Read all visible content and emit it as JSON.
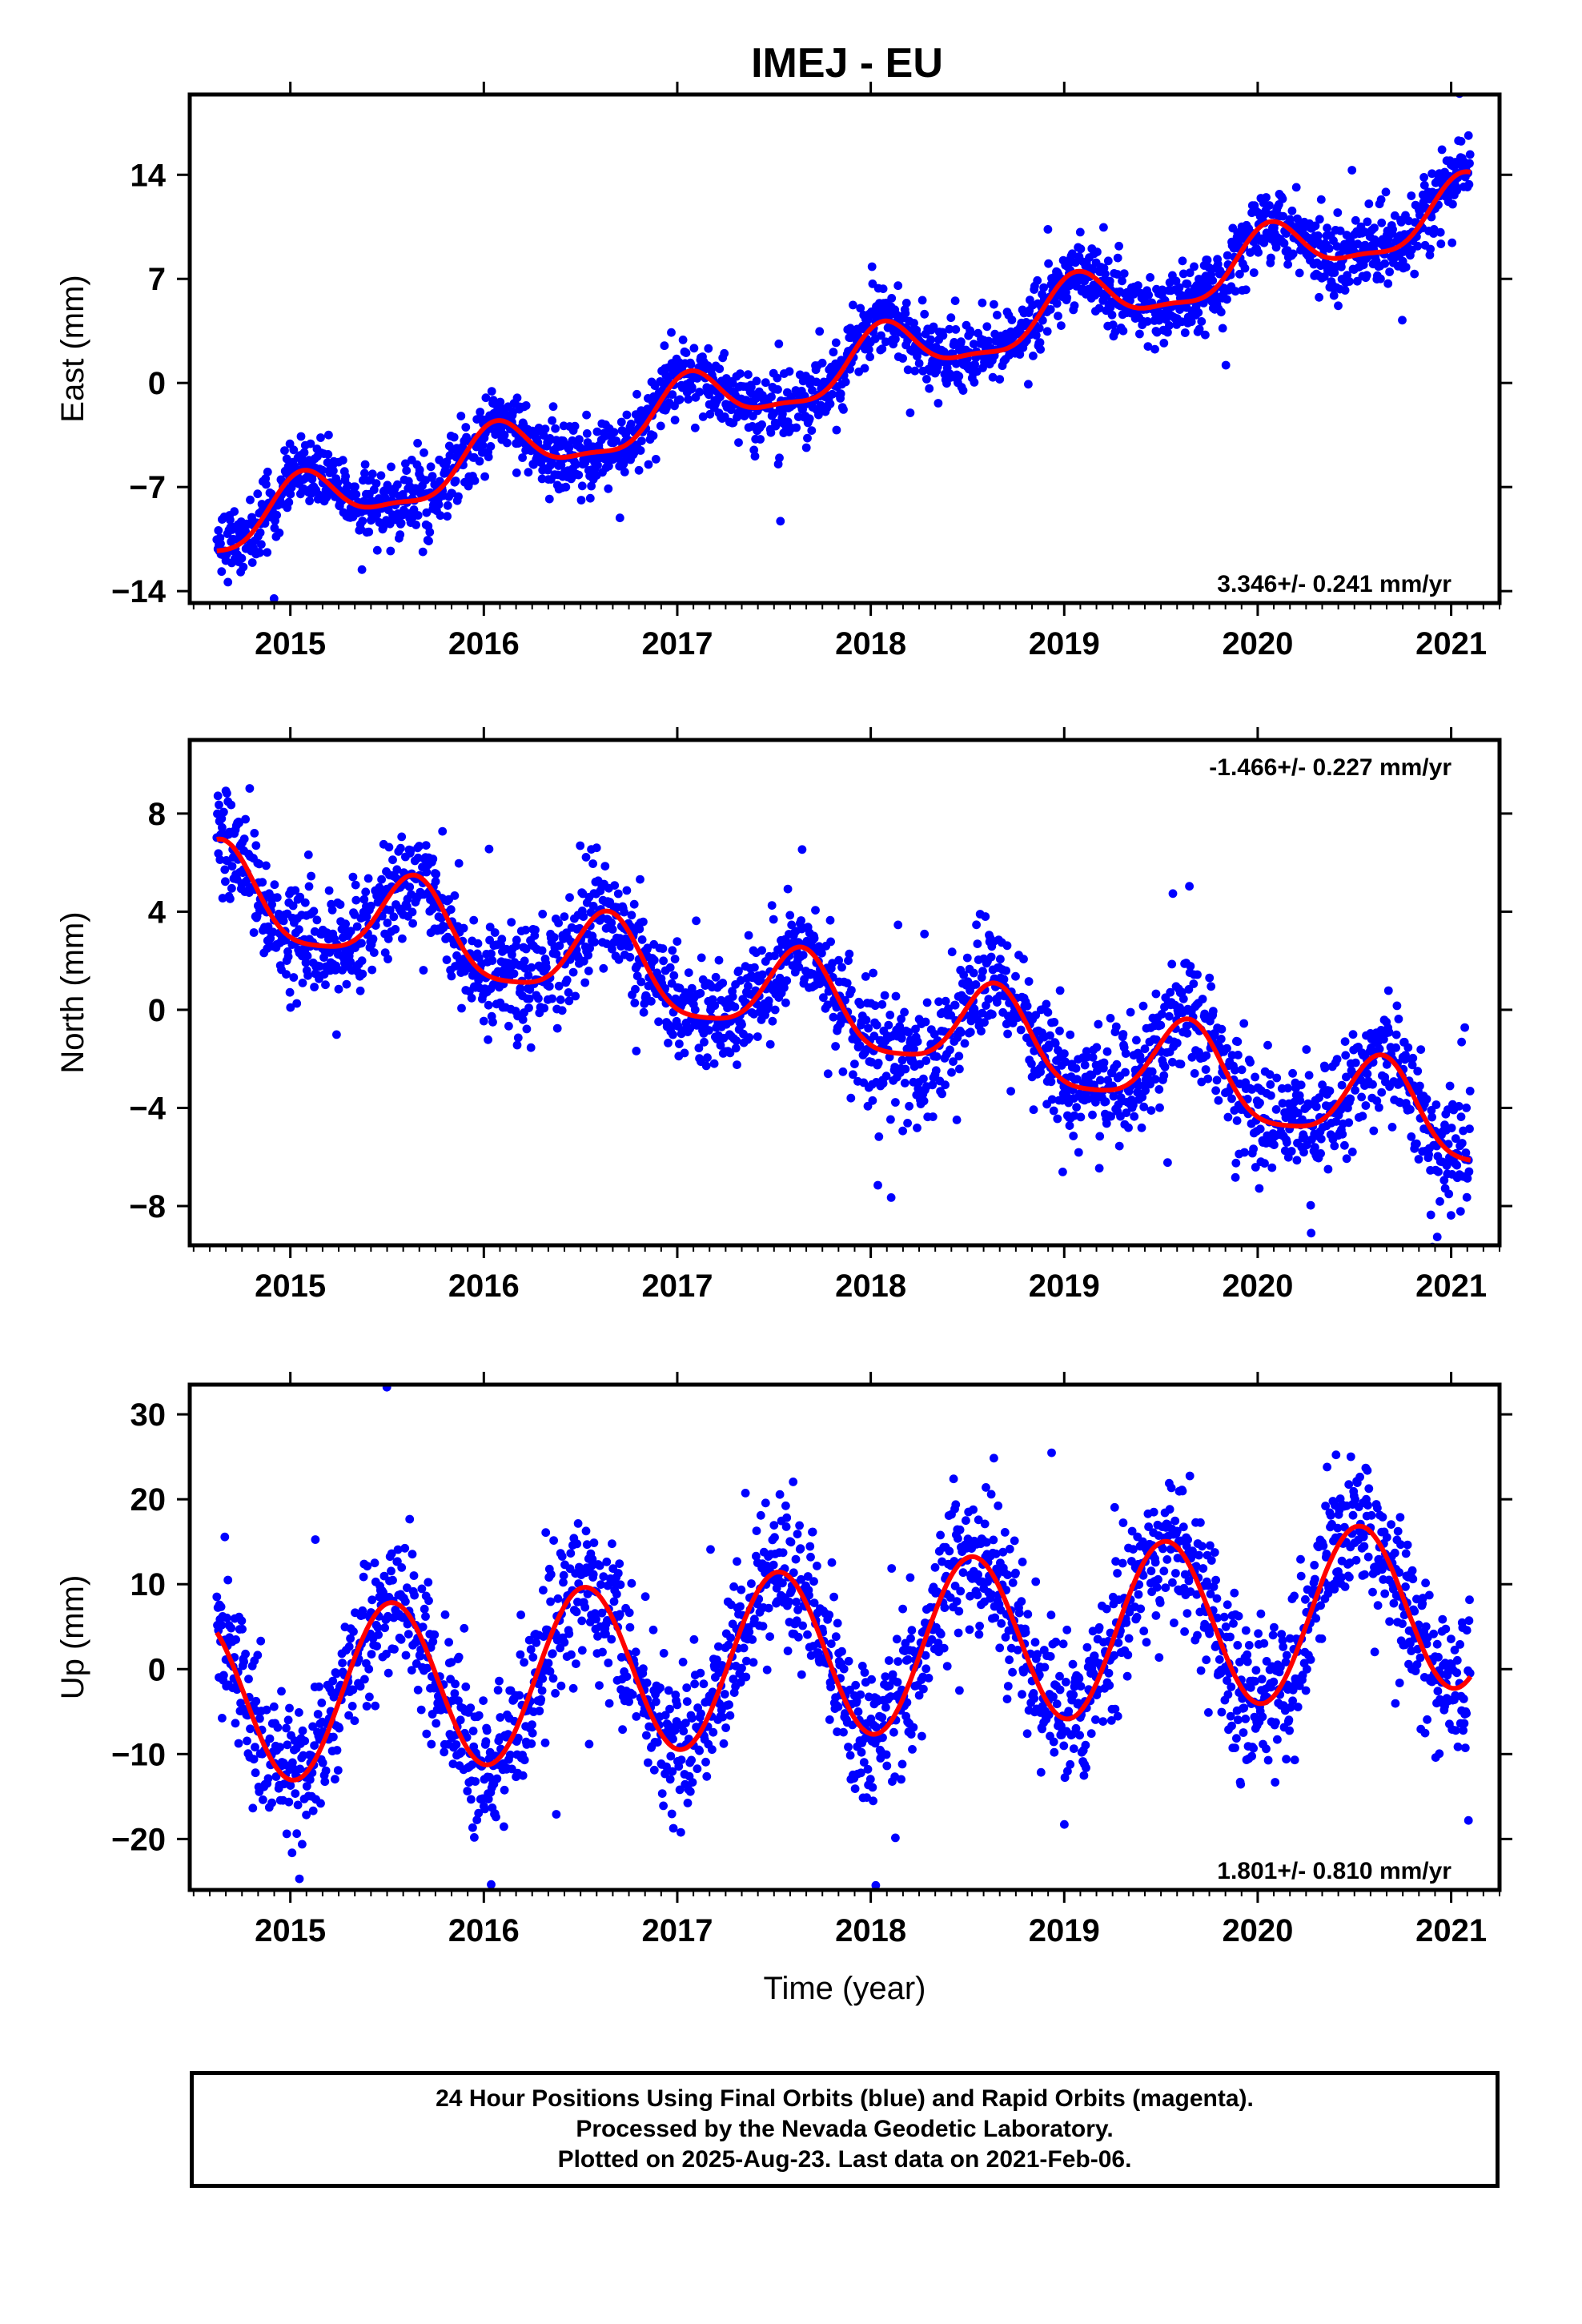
{
  "title": "IMEJ - EU",
  "colors": {
    "points": "#0000ff",
    "fit": "#ff0000",
    "frame": "#000000"
  },
  "caption": {
    "line1": "24 Hour Positions Using Final Orbits (blue) and Rapid Orbits (magenta).",
    "line2": "Processed by the Nevada Geodetic Laboratory.",
    "line3": "Plotted on 2025-Aug-23. Last data on 2021-Feb-06."
  },
  "chart_data": [
    {
      "type": "scatter",
      "id": "east",
      "ylabel": "East (mm)",
      "xlabel": "",
      "rate_label": "3.346+/- 0.241 mm/yr",
      "rate_position": "bottom-right",
      "xlim": [
        2014.48,
        2021.25
      ],
      "ylim": [
        -14.8,
        19.4
      ],
      "xticks": [
        2015,
        2016,
        2017,
        2018,
        2019,
        2020,
        2021
      ],
      "yticks": [
        -14,
        -7,
        0,
        7,
        14
      ],
      "data_start": 2014.62,
      "data_end": 2021.1,
      "model": {
        "intercept_at_2017": -1.9,
        "rate": 3.346,
        "annual_amplitude": 1.9,
        "annual_peak": 0.07,
        "semiannual_amplitude": 0.6,
        "semiannual_peak": 0.05,
        "scatter_sd": 1.2
      },
      "series": [
        {
          "name": "Final Orbits",
          "style": "points",
          "color": "#0000ff"
        },
        {
          "name": "Fit",
          "style": "line",
          "color": "#ff0000"
        }
      ]
    },
    {
      "type": "scatter",
      "id": "north",
      "ylabel": "North (mm)",
      "xlabel": "",
      "rate_label": "-1.466+/- 0.227 mm/yr",
      "rate_position": "top-right",
      "xlim": [
        2014.48,
        2021.25
      ],
      "ylim": [
        -9.6,
        11.0
      ],
      "xticks": [
        2015,
        2016,
        2017,
        2018,
        2019,
        2020,
        2021
      ],
      "yticks": [
        -8,
        -4,
        0,
        4,
        8
      ],
      "data_start": 2014.62,
      "data_end": 2021.1,
      "model": {
        "intercept_at_2017": 1.3,
        "rate": -1.466,
        "annual_amplitude": 1.8,
        "annual_peak": 0.64,
        "semiannual_amplitude": 0.4,
        "semiannual_peak": 0.15,
        "scatter_sd": 1.1
      },
      "series": [
        {
          "name": "Final Orbits",
          "style": "points",
          "color": "#0000ff"
        },
        {
          "name": "Fit",
          "style": "line",
          "color": "#ff0000"
        }
      ]
    },
    {
      "type": "scatter",
      "id": "up",
      "ylabel": "Up (mm)",
      "xlabel": "Time (year)",
      "rate_label": "1.801+/- 0.810 mm/yr",
      "rate_position": "bottom-right",
      "xlim": [
        2014.48,
        2021.25
      ],
      "ylim": [
        -26.0,
        33.5
      ],
      "xticks": [
        2015,
        2016,
        2017,
        2018,
        2019,
        2020,
        2021
      ],
      "yticks": [
        -20,
        -10,
        0,
        10,
        20,
        30
      ],
      "data_start": 2014.62,
      "data_end": 2021.1,
      "model": {
        "intercept_at_2017": 0.5,
        "rate": 1.801,
        "annual_amplitude": 10.0,
        "annual_peak": 0.52,
        "semiannual_amplitude": 0.0,
        "semiannual_peak": 0.0,
        "scatter_sd": 4.2
      },
      "series": [
        {
          "name": "Final Orbits",
          "style": "points",
          "color": "#0000ff"
        },
        {
          "name": "Fit",
          "style": "line",
          "color": "#ff0000"
        }
      ]
    }
  ]
}
